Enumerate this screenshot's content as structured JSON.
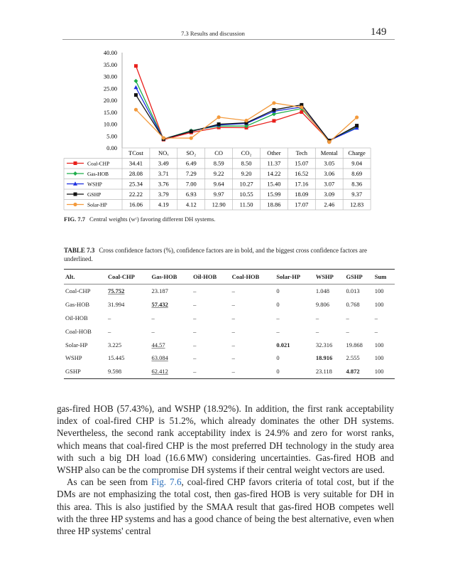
{
  "header": {
    "section": "7.3 Results and discussion",
    "page_number": "149"
  },
  "chart_data": {
    "type": "line",
    "title": "",
    "categories": [
      "TCost",
      "NOx",
      "SO2",
      "CO",
      "CO2",
      "Other",
      "Tech",
      "Mental",
      "Charge"
    ],
    "category_labels": [
      "TCost",
      "NOₓ",
      "SO₂",
      "CO",
      "CO₂",
      "Other",
      "Tech",
      "Mental",
      "Charge"
    ],
    "ylim": [
      0,
      40
    ],
    "yticks": [
      "0.00",
      "5.00",
      "10.00",
      "15.00",
      "20.00",
      "25.00",
      "30.00",
      "35.00",
      "40.00"
    ],
    "legend_placement": "data-table-left",
    "series": [
      {
        "name": "Coal-CHP",
        "color": "#e8201c",
        "marker": "square",
        "values": [
          "34.41",
          "3.49",
          "6.49",
          "8.59",
          "8.50",
          "11.37",
          "15.07",
          "3.05",
          "9.04"
        ]
      },
      {
        "name": "Gas-HOB",
        "color": "#1fae4b",
        "marker": "diamond",
        "values": [
          "28.08",
          "3.71",
          "7.29",
          "9.22",
          "9.20",
          "14.22",
          "16.52",
          "3.06",
          "8.69"
        ]
      },
      {
        "name": "WSHP",
        "color": "#1c2fe0",
        "marker": "triangle",
        "values": [
          "25.34",
          "3.76",
          "7.00",
          "9.64",
          "10.27",
          "15.40",
          "17.16",
          "3.07",
          "8.36"
        ]
      },
      {
        "name": "GSHP",
        "color": "#111111",
        "marker": "square",
        "values": [
          "22.22",
          "3.79",
          "6.93",
          "9.97",
          "10.55",
          "15.99",
          "18.09",
          "3.09",
          "9.37"
        ]
      },
      {
        "name": "Solar-HP",
        "color": "#f39a3c",
        "marker": "circle",
        "values": [
          "16.06",
          "4.19",
          "4.12",
          "12.90",
          "11.50",
          "18.86",
          "17.07",
          "2.46",
          "12.83"
        ]
      }
    ]
  },
  "figure": {
    "label": "FIG. 7.7",
    "caption": "Central weights (wᶜ) favoring different DH systems."
  },
  "table": {
    "label": "TABLE 7.3",
    "caption": "Cross confidence factors (%), confidence factors are in bold, and the biggest cross confidence factors are underlined.",
    "headers": [
      "Alt.",
      "Coal-CHP",
      "Gas-HOB",
      "Oil-HOB",
      "Coal-HOB",
      "Solar-HP",
      "WSHP",
      "GSHP",
      "Sum"
    ],
    "rows": [
      [
        "Coal-CHP",
        "75.752",
        "23.187",
        "–",
        "–",
        "0",
        "1.048",
        "0.013",
        "100"
      ],
      [
        "Gas-HOB",
        "31.994",
        "57.432",
        "–",
        "–",
        "0",
        "9.806",
        "0.768",
        "100"
      ],
      [
        "Oil-HOB",
        "–",
        "–",
        "–",
        "–",
        "–",
        "–",
        "–",
        "–"
      ],
      [
        "Coal-HOB",
        "–",
        "–",
        "–",
        "–",
        "–",
        "–",
        "–",
        "–"
      ],
      [
        "Solar-HP",
        "3.225",
        "44.57",
        "–",
        "–",
        "0.021",
        "32.316",
        "19.868",
        "100"
      ],
      [
        "WSHP",
        "15.445",
        "63.084",
        "–",
        "–",
        "0",
        "18.916",
        "2.555",
        "100"
      ],
      [
        "GSHP",
        "9.598",
        "62.412",
        "–",
        "–",
        "0",
        "23.118",
        "4.872",
        "100"
      ]
    ],
    "bold": [
      [
        0,
        1
      ],
      [
        1,
        2
      ],
      [
        4,
        5
      ],
      [
        5,
        6
      ],
      [
        6,
        7
      ]
    ],
    "underline": [
      [
        0,
        1
      ],
      [
        1,
        2
      ],
      [
        4,
        2
      ],
      [
        5,
        2
      ],
      [
        6,
        2
      ]
    ]
  },
  "body": {
    "p1": "gas-fired HOB (57.43%), and WSHP (18.92%). In addition, the first rank acceptability index of coal-fired CHP is 51.2%, which already dominates the other DH systems. Nevertheless, the second rank acceptability index is 24.9% and zero for worst ranks, which means that coal-fired CHP is the most preferred DH technology in the study area with such a big DH load (16.6 MW) considering uncertainties. Gas-fired HOB and WSHP also can be the compromise DH systems if their central weight vectors are used.",
    "p2_before": "As can be seen from ",
    "p2_link": "Fig. 7.6",
    "p2_after": ", coal-fired CHP favors criteria of total cost, but if the DMs are not emphasizing the total cost, then gas-fired HOB is very suitable for DH in this area. This is also justified by the SMAA result that gas-fired HOB competes well with the three HP systems and has a good chance of being the best alternative, even when three HP systems' central"
  }
}
